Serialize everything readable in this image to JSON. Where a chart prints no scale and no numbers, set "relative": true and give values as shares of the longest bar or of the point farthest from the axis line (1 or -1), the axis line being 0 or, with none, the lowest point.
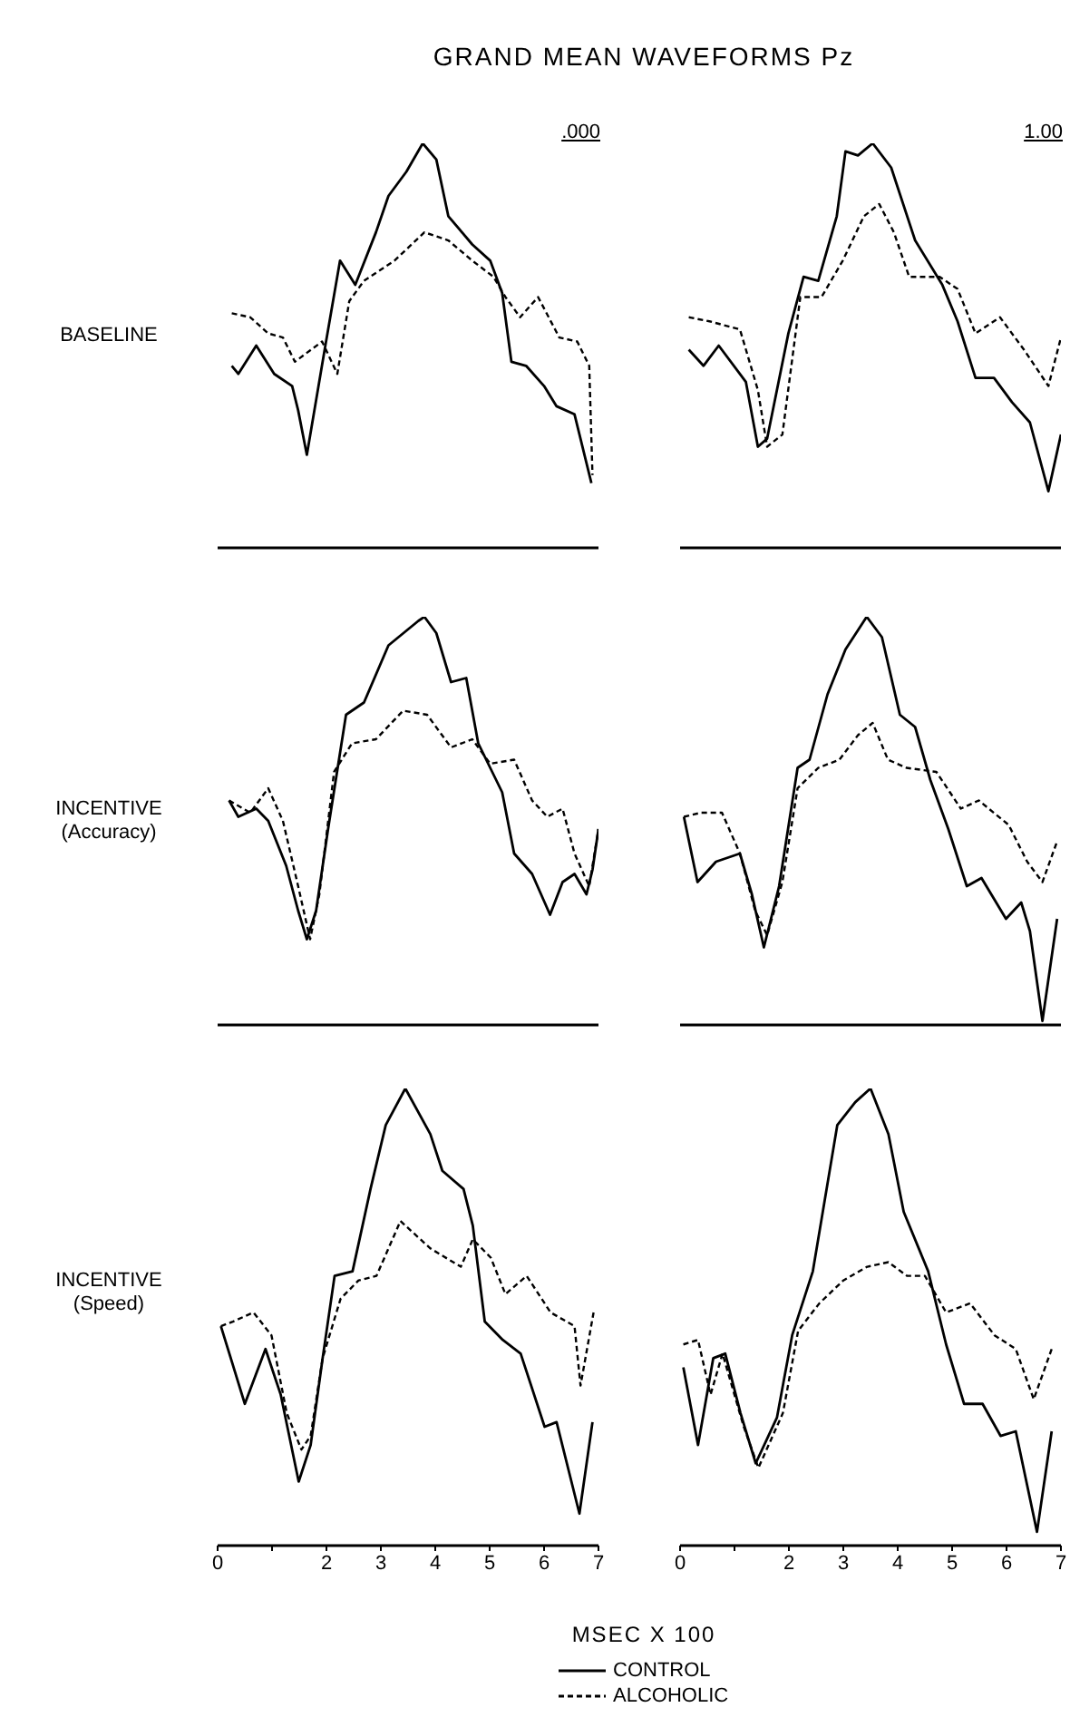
{
  "chart_data": [
    {
      "type": "line",
      "title": "GRAND MEAN WAVEFORMS Pz",
      "subtitle": ".000",
      "ylabel": "BASELINE",
      "relative": true,
      "xlim": [
        0,
        7
      ],
      "tick_labels": false,
      "series": [
        {
          "color": "#000000",
          "line_style": "solid",
          "x": [
            0.26,
            0.38,
            0.71,
            1.04,
            1.37,
            1.48,
            1.64,
            1.98,
            2.25,
            2.53,
            2.91,
            3.14,
            3.47,
            3.77,
            4.02,
            4.24,
            4.68,
            5.01,
            5.23,
            5.4,
            5.67,
            6.0,
            6.23,
            6.56,
            6.87
          ],
          "values": [
            0.45,
            0.43,
            0.5,
            0.43,
            0.4,
            0.34,
            0.23,
            0.5,
            0.71,
            0.65,
            0.78,
            0.87,
            0.93,
            1.0,
            0.96,
            0.82,
            0.75,
            0.71,
            0.63,
            0.46,
            0.45,
            0.4,
            0.35,
            0.33,
            0.16
          ]
        },
        {
          "color": "#000000",
          "line_style": "dashed",
          "x": [
            0.26,
            0.6,
            0.93,
            1.2,
            1.42,
            1.92,
            2.2,
            2.42,
            2.69,
            3.25,
            3.8,
            4.24,
            4.68,
            5.07,
            5.29,
            5.56,
            5.89,
            6.28,
            6.61,
            6.83,
            6.89
          ],
          "values": [
            0.58,
            0.57,
            0.53,
            0.52,
            0.46,
            0.51,
            0.43,
            0.61,
            0.66,
            0.71,
            0.78,
            0.76,
            0.71,
            0.67,
            0.62,
            0.57,
            0.62,
            0.52,
            0.51,
            0.45,
            0.18
          ]
        }
      ]
    },
    {
      "type": "line",
      "subtitle": "1.00",
      "relative": true,
      "xlim": [
        0,
        7
      ],
      "tick_labels": false,
      "series": [
        {
          "color": "#000000",
          "line_style": "solid",
          "x": [
            0.16,
            0.43,
            0.71,
            1.21,
            1.43,
            1.6,
            1.99,
            2.27,
            2.54,
            2.88,
            3.04,
            3.27,
            3.54,
            3.88,
            4.32,
            4.82,
            5.1,
            5.43,
            5.77,
            6.1,
            6.43,
            6.77,
            7.0
          ],
          "values": [
            0.49,
            0.45,
            0.5,
            0.41,
            0.25,
            0.27,
            0.53,
            0.67,
            0.66,
            0.82,
            0.98,
            0.97,
            1.0,
            0.94,
            0.76,
            0.65,
            0.56,
            0.42,
            0.42,
            0.36,
            0.31,
            0.14,
            0.28
          ]
        },
        {
          "color": "#000000",
          "line_style": "dashed",
          "x": [
            0.16,
            0.54,
            1.1,
            1.43,
            1.6,
            1.88,
            2.21,
            2.6,
            2.99,
            3.38,
            3.66,
            3.93,
            4.21,
            4.77,
            5.1,
            5.43,
            5.88,
            6.32,
            6.77,
            7.0
          ],
          "values": [
            0.57,
            0.56,
            0.54,
            0.39,
            0.25,
            0.28,
            0.62,
            0.62,
            0.71,
            0.82,
            0.85,
            0.78,
            0.67,
            0.67,
            0.64,
            0.53,
            0.57,
            0.49,
            0.4,
            0.52
          ]
        }
      ]
    },
    {
      "type": "line",
      "ylabel": "INCENTIVE\n(Accuracy)",
      "relative": true,
      "xlim": [
        0,
        7
      ],
      "tick_labels": false,
      "series": [
        {
          "color": "#000000",
          "line_style": "solid",
          "x": [
            0.21,
            0.38,
            0.71,
            0.93,
            1.26,
            1.48,
            1.64,
            1.81,
            2.03,
            2.36,
            2.69,
            3.14,
            3.69,
            3.8,
            4.02,
            4.29,
            4.57,
            4.79,
            5.23,
            5.45,
            5.78,
            6.11,
            6.34,
            6.56,
            6.78,
            6.89,
            7.0
          ],
          "values": [
            0.55,
            0.51,
            0.53,
            0.5,
            0.39,
            0.28,
            0.21,
            0.28,
            0.48,
            0.76,
            0.79,
            0.93,
            0.99,
            1.0,
            0.96,
            0.84,
            0.85,
            0.69,
            0.57,
            0.42,
            0.37,
            0.27,
            0.35,
            0.37,
            0.32,
            0.38,
            0.48
          ]
        },
        {
          "color": "#000000",
          "line_style": "dashed",
          "x": [
            0.21,
            0.6,
            0.93,
            1.2,
            1.48,
            1.7,
            1.87,
            2.14,
            2.47,
            2.91,
            3.41,
            3.85,
            4.29,
            4.68,
            5.01,
            5.45,
            5.78,
            6.06,
            6.34,
            6.56,
            6.83,
            7.0
          ],
          "values": [
            0.55,
            0.52,
            0.58,
            0.5,
            0.34,
            0.21,
            0.32,
            0.62,
            0.69,
            0.7,
            0.77,
            0.76,
            0.68,
            0.7,
            0.64,
            0.65,
            0.55,
            0.51,
            0.53,
            0.42,
            0.34,
            0.48
          ]
        }
      ]
    },
    {
      "type": "line",
      "relative": true,
      "xlim": [
        0,
        7
      ],
      "tick_labels": false,
      "series": [
        {
          "color": "#000000",
          "line_style": "solid",
          "x": [
            0.07,
            0.32,
            0.66,
            1.1,
            1.32,
            1.54,
            1.82,
            2.16,
            2.38,
            2.71,
            3.04,
            3.43,
            3.71,
            4.04,
            4.32,
            4.6,
            4.93,
            5.27,
            5.54,
            5.99,
            6.27,
            6.43,
            6.66,
            6.93
          ],
          "values": [
            0.51,
            0.35,
            0.4,
            0.42,
            0.32,
            0.19,
            0.34,
            0.63,
            0.65,
            0.81,
            0.92,
            1.0,
            0.95,
            0.76,
            0.73,
            0.6,
            0.48,
            0.34,
            0.36,
            0.26,
            0.3,
            0.23,
            0.01,
            0.26
          ]
        },
        {
          "color": "#000000",
          "line_style": "dashed",
          "x": [
            0.07,
            0.38,
            0.77,
            1.1,
            1.38,
            1.6,
            1.88,
            2.16,
            2.54,
            2.93,
            3.27,
            3.54,
            3.82,
            4.16,
            4.71,
            5.16,
            5.49,
            6.04,
            6.38,
            6.66,
            6.93
          ],
          "values": [
            0.51,
            0.52,
            0.52,
            0.42,
            0.28,
            0.22,
            0.35,
            0.58,
            0.63,
            0.65,
            0.71,
            0.74,
            0.65,
            0.63,
            0.62,
            0.53,
            0.55,
            0.49,
            0.4,
            0.35,
            0.45
          ]
        }
      ]
    },
    {
      "type": "line",
      "ylabel": "INCENTIVE\n(Speed)",
      "xlabel": "MSEC X 100",
      "legend": "bottom",
      "relative": true,
      "xlim": [
        0,
        7
      ],
      "xticks": [
        0,
        {
          "value": 1,
          "label": null
        },
        2,
        3,
        4,
        5,
        6,
        7
      ],
      "tick_labels": "x",
      "series": [
        {
          "name": "CONTROL",
          "color": "#000000",
          "line_style": "solid",
          "x": [
            0.06,
            0.5,
            0.88,
            1.16,
            1.49,
            1.71,
            1.93,
            2.15,
            2.48,
            2.81,
            3.09,
            3.45,
            3.91,
            4.13,
            4.52,
            4.69,
            4.91,
            5.24,
            5.57,
            6.01,
            6.23,
            6.65,
            6.89
          ],
          "values": [
            0.48,
            0.31,
            0.43,
            0.33,
            0.14,
            0.22,
            0.41,
            0.59,
            0.6,
            0.78,
            0.92,
            1.0,
            0.9,
            0.82,
            0.78,
            0.7,
            0.49,
            0.45,
            0.42,
            0.26,
            0.27,
            0.07,
            0.27
          ]
        },
        {
          "name": "ALCOHOLIC",
          "color": "#000000",
          "line_style": "dashed",
          "x": [
            0.06,
            0.28,
            0.66,
            0.99,
            1.27,
            1.54,
            1.71,
            1.93,
            2.26,
            2.59,
            2.92,
            3.36,
            3.91,
            4.47,
            4.69,
            5.02,
            5.29,
            5.68,
            6.12,
            6.56,
            6.67,
            6.91
          ],
          "values": [
            0.48,
            0.49,
            0.51,
            0.46,
            0.29,
            0.21,
            0.24,
            0.41,
            0.54,
            0.58,
            0.59,
            0.71,
            0.65,
            0.61,
            0.67,
            0.63,
            0.55,
            0.59,
            0.51,
            0.48,
            0.35,
            0.51
          ]
        }
      ]
    },
    {
      "type": "line",
      "relative": true,
      "xlim": [
        0,
        7
      ],
      "xticks": [
        0,
        {
          "value": 1,
          "label": null
        },
        2,
        3,
        4,
        5,
        6,
        7
      ],
      "tick_labels": "x",
      "series": [
        {
          "color": "#000000",
          "line_style": "solid",
          "x": [
            0.06,
            0.33,
            0.61,
            0.83,
            1.11,
            1.39,
            1.78,
            2.06,
            2.44,
            2.89,
            3.22,
            3.5,
            3.83,
            4.11,
            4.56,
            4.89,
            5.22,
            5.56,
            5.89,
            6.17,
            6.56,
            6.83
          ],
          "values": [
            0.39,
            0.22,
            0.41,
            0.42,
            0.29,
            0.18,
            0.28,
            0.46,
            0.6,
            0.92,
            0.97,
            1.0,
            0.9,
            0.73,
            0.6,
            0.44,
            0.31,
            0.31,
            0.24,
            0.25,
            0.03,
            0.25
          ]
        },
        {
          "color": "#000000",
          "line_style": "dashed",
          "x": [
            0.06,
            0.33,
            0.56,
            0.78,
            1.17,
            1.44,
            1.89,
            2.17,
            2.56,
            3.0,
            3.44,
            3.83,
            4.17,
            4.5,
            4.89,
            5.33,
            5.78,
            6.17,
            6.5,
            6.83
          ],
          "values": [
            0.44,
            0.45,
            0.33,
            0.42,
            0.26,
            0.17,
            0.29,
            0.47,
            0.53,
            0.58,
            0.61,
            0.62,
            0.59,
            0.59,
            0.51,
            0.53,
            0.46,
            0.43,
            0.32,
            0.43
          ]
        }
      ]
    }
  ]
}
